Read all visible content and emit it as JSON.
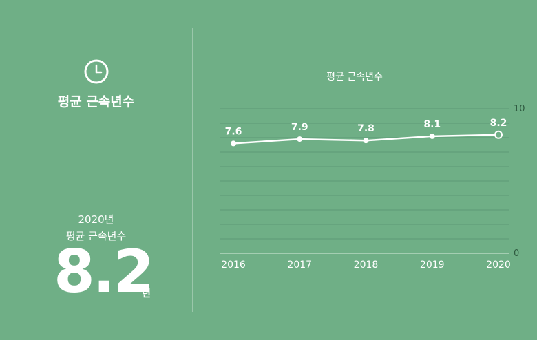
{
  "summary": {
    "title": "평균 근속년수",
    "year": "2020년",
    "label": "평균 근속년수",
    "value": "8.2",
    "unit": "년"
  },
  "chart_data": {
    "type": "line",
    "title": "평균 근속년수",
    "categories": [
      "2016",
      "2017",
      "2018",
      "2019",
      "2020"
    ],
    "values": [
      7.6,
      7.9,
      7.8,
      8.1,
      8.2
    ],
    "value_labels": [
      "7.6",
      "7.9",
      "7.8",
      "8.1",
      "8.2"
    ],
    "ylim": [
      0,
      10
    ],
    "y_ticks": [
      "0",
      "10"
    ],
    "grid": true,
    "last_point_hollow": true,
    "colors": {
      "background": "#6faf86",
      "line": "#ffffff",
      "grid": "#5e9a75",
      "text": "#ffffff",
      "axis_text": "#2f5a40"
    }
  }
}
